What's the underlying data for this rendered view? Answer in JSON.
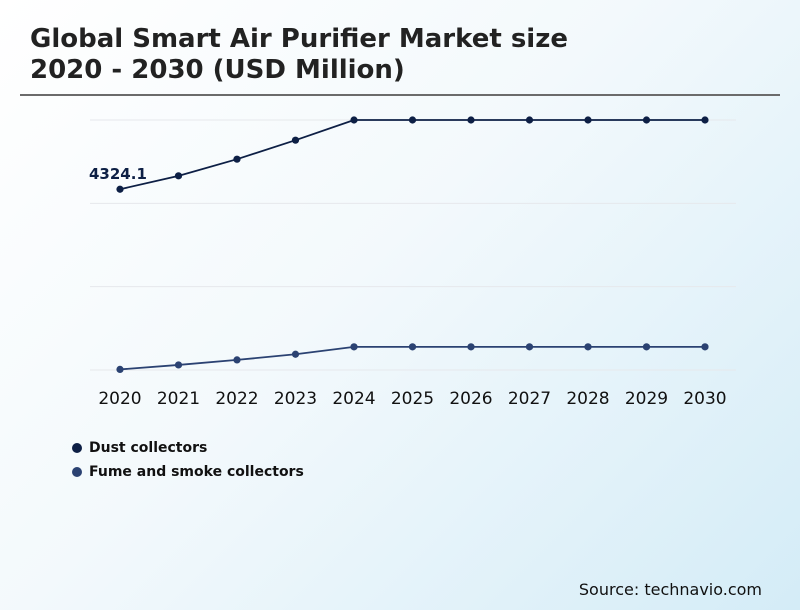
{
  "title_lines": [
    "Global Smart Air Purifier Market size",
    "2020 - 2030 (USD Million)"
  ],
  "source": "Source: technavio.com",
  "colors": {
    "dust": "#0d1f45",
    "fume": "#2b4272",
    "grid": "#e6e8ec",
    "rule": "#6b6b6b"
  },
  "chart_data": {
    "type": "line",
    "x": [
      "2020",
      "2021",
      "2022",
      "2023",
      "2024",
      "2025",
      "2026",
      "2027",
      "2028",
      "2029",
      "2030"
    ],
    "grid": true,
    "legend_position": "bottom-left",
    "series": [
      {
        "name": "Dust collectors",
        "values": [
          4324.1,
          4550,
          4830,
          5150,
          5490,
          5490,
          5490,
          5490,
          5490,
          5490,
          5490
        ],
        "annotation": "4324.1"
      },
      {
        "name": "Fume and smoke collectors",
        "values": [
          1290,
          1365,
          1450,
          1545,
          1670,
          1670,
          1670,
          1670,
          1670,
          1670,
          1670
        ]
      }
    ],
    "ylim": [
      1280,
      5490
    ]
  }
}
